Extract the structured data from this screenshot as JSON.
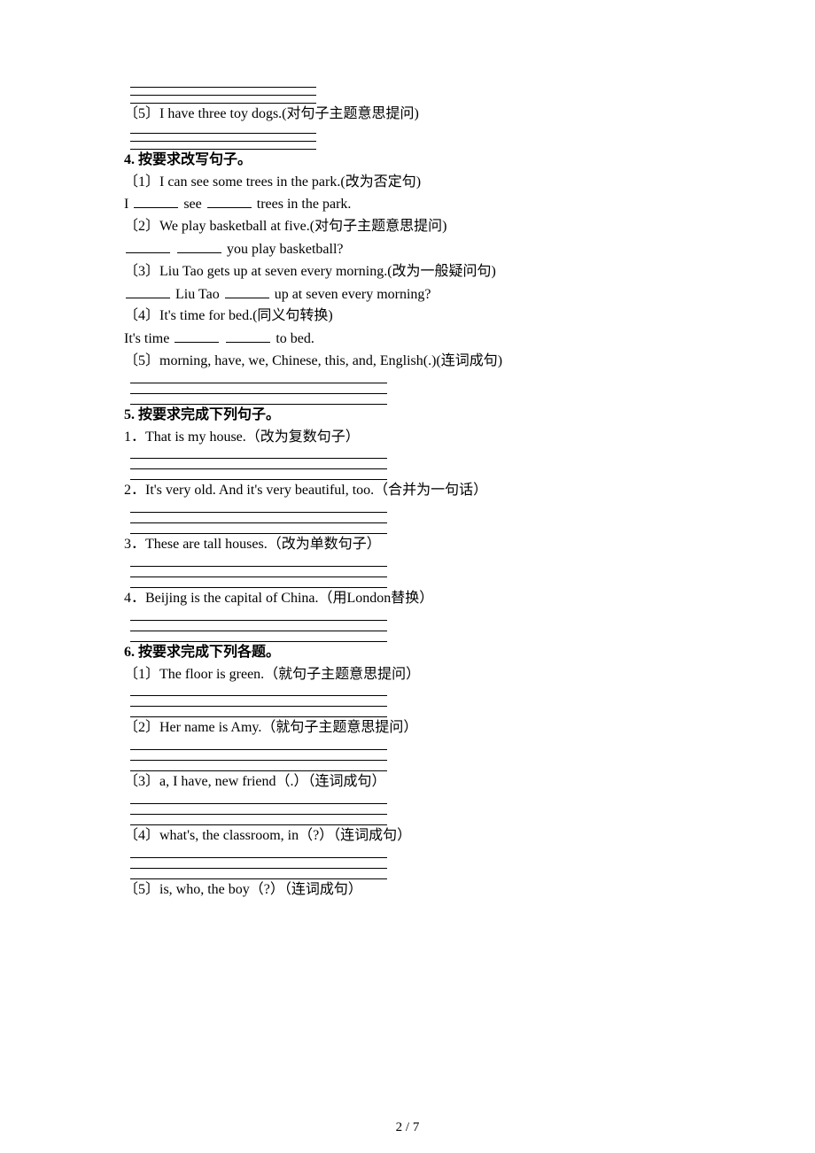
{
  "q3": {
    "item5": "〔5〕I have three toy dogs.(对句子主题意思提问)"
  },
  "q4": {
    "heading": "4. 按要求改写句子。",
    "item1": "〔1〕I can see some trees in the park.(改为否定句)",
    "item1_ans_a": "I ",
    "item1_ans_b": " see ",
    "item1_ans_c": " trees in the park.",
    "item2": "〔2〕We play basketball at five.(对句子主题意思提问)",
    "item2_ans_end": " you play basketball?",
    "item3": "〔3〕Liu Tao gets up at seven every morning.(改为一般疑问句)",
    "item3_ans_mid": " Liu Tao ",
    "item3_ans_end": " up at seven every morning?",
    "item4": "〔4〕It's time for bed.(同义句转换)",
    "item4_ans_a": "It's time ",
    "item4_ans_b": " ",
    "item4_ans_c": " to bed.",
    "item5": "〔5〕morning, have, we, Chinese, this, and, English(.)(连词成句)"
  },
  "q5": {
    "heading": "5. 按要求完成下列句子。",
    "item1": "1．That is my house.（改为复数句子）",
    "item2": "2．It's very old. And it's very beautiful, too.（合并为一句话）",
    "item3": "3．These are tall houses.（改为单数句子）",
    "item4": "4．Beijing is the capital of China.（用London替换）"
  },
  "q6": {
    "heading": "6. 按要求完成下列各题。",
    "item1": "〔1〕The floor is green.（就句子主题意思提问）",
    "item2": "〔2〕Her name is Amy.（就句子主题意思提问）",
    "item3": "〔3〕a, I have, new friend（.）（连词成句）",
    "item4": "〔4〕what's, the classroom, in（?）（连词成句）",
    "item5": "〔5〕is, who, the boy（?）（连词成句）"
  },
  "pagenum": "2 / 7"
}
